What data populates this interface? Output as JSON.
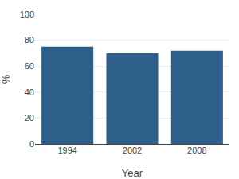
{
  "chart_data": {
    "type": "bar",
    "categories": [
      "1994",
      "2002",
      "2008"
    ],
    "values": [
      75,
      70,
      72
    ],
    "color": "#2E5F8A",
    "xlabel": "Year",
    "ylabel": "%",
    "ylim": [
      0,
      100
    ],
    "yticks": [
      0,
      20,
      40,
      60,
      80,
      100
    ],
    "grid": true
  }
}
